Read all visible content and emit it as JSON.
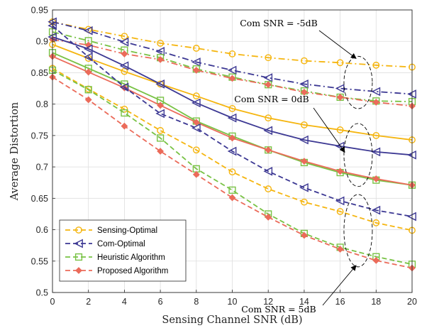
{
  "chart_data": {
    "type": "line",
    "xlabel": "Sensing Channel SNR (dB)",
    "ylabel": "Average Distortion",
    "xlim": [
      0,
      20
    ],
    "ylim": [
      0.5,
      0.95
    ],
    "x_ticks": [
      "0",
      "2",
      "4",
      "6",
      "8",
      "10",
      "12",
      "14",
      "16",
      "18",
      "20"
    ],
    "y_ticks": [
      "0.5",
      "0.55",
      "0.6",
      "0.65",
      "0.7",
      "0.75",
      "0.8",
      "0.85",
      "0.9",
      "0.95"
    ],
    "grid": true,
    "legend_position": "bottom-left",
    "x": [
      0,
      2,
      4,
      6,
      8,
      10,
      12,
      14,
      16,
      18,
      20
    ],
    "methods": [
      {
        "name": "Sensing-Optimal",
        "color": "#f5b50f",
        "marker": "circle"
      },
      {
        "name": "Com-Optimal",
        "color": "#3c3893",
        "marker": "triangle-left"
      },
      {
        "name": "Heuristic Algorithm",
        "color": "#78c244",
        "marker": "square"
      },
      {
        "name": "Proposed Algorithm",
        "color": "#eb6b5a",
        "marker": "diamond"
      }
    ],
    "snr_levels": [
      {
        "label": "Com SNR = -5dB",
        "dash": "dashdot",
        "series": [
          [
            0.931,
            0.919,
            0.908,
            0.897,
            0.889,
            0.88,
            0.874,
            0.869,
            0.866,
            0.862,
            0.859
          ],
          [
            0.931,
            0.917,
            0.899,
            0.884,
            0.867,
            0.854,
            0.842,
            0.832,
            0.825,
            0.82,
            0.816
          ],
          [
            0.915,
            0.901,
            0.886,
            0.874,
            0.856,
            0.843,
            0.831,
            0.821,
            0.811,
            0.805,
            0.804
          ],
          [
            0.903,
            0.894,
            0.88,
            0.871,
            0.854,
            0.841,
            0.831,
            0.819,
            0.811,
            0.803,
            0.797
          ]
        ]
      },
      {
        "label": "Com SNR = 0dB",
        "dash": "solid",
        "series": [
          [
            0.895,
            0.873,
            0.852,
            0.832,
            0.813,
            0.793,
            0.778,
            0.767,
            0.759,
            0.75,
            0.743
          ],
          [
            0.907,
            0.888,
            0.861,
            0.832,
            0.802,
            0.778,
            0.758,
            0.743,
            0.733,
            0.724,
            0.719
          ],
          [
            0.882,
            0.857,
            0.832,
            0.806,
            0.773,
            0.749,
            0.727,
            0.707,
            0.691,
            0.679,
            0.671
          ],
          [
            0.876,
            0.851,
            0.826,
            0.798,
            0.771,
            0.746,
            0.727,
            0.709,
            0.693,
            0.681,
            0.671
          ]
        ]
      },
      {
        "label": "Com SNR = 5dB",
        "dash": "dashed",
        "series": [
          [
            0.857,
            0.824,
            0.792,
            0.758,
            0.727,
            0.692,
            0.665,
            0.644,
            0.629,
            0.611,
            0.599
          ],
          [
            0.925,
            0.875,
            0.827,
            0.785,
            0.762,
            0.725,
            0.693,
            0.667,
            0.646,
            0.631,
            0.621
          ],
          [
            0.854,
            0.823,
            0.786,
            0.746,
            0.697,
            0.663,
            0.625,
            0.594,
            0.572,
            0.557,
            0.545
          ],
          [
            0.843,
            0.807,
            0.765,
            0.725,
            0.688,
            0.651,
            0.62,
            0.591,
            0.569,
            0.551,
            0.539
          ]
        ]
      }
    ]
  }
}
